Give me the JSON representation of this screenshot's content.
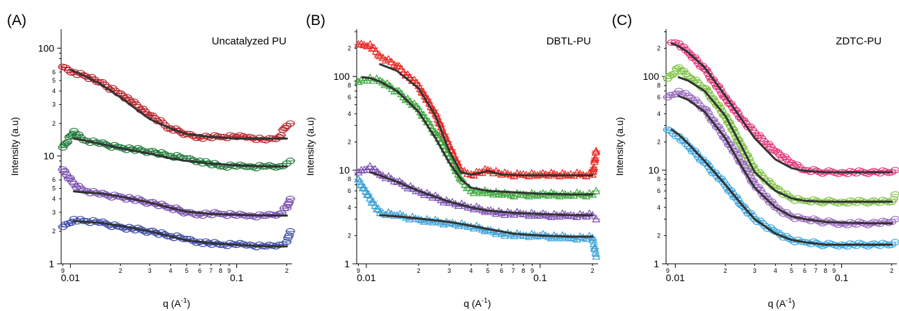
{
  "chart_data": [
    {
      "type": "scatter",
      "panel_label": "(A)",
      "title": "Uncatalyzed PU",
      "xlabel_base": "q (A",
      "xlabel_exp": "-1",
      "xlabel_close": ")",
      "ylabel": "Intensity (a.u)",
      "xscale": "log",
      "yscale": "log",
      "xlim": [
        0.0088,
        0.215
      ],
      "ylim": [
        1,
        150
      ],
      "marker": "ellipse",
      "y_major_ticks": [
        {
          "v": 1,
          "label": "1"
        },
        {
          "v": 10,
          "label": "10"
        },
        {
          "v": 100,
          "label": "100"
        }
      ],
      "y_minor_labels": [
        "2",
        "3",
        "4",
        "5",
        "6",
        "2",
        "3",
        "4",
        "5",
        "6",
        "2",
        "3",
        "4",
        "5",
        "6"
      ],
      "series": [
        {
          "color": "#b8232a",
          "x": [
            0.009,
            0.0105,
            0.012,
            0.015,
            0.02,
            0.03,
            0.04,
            0.05,
            0.06,
            0.08,
            0.1,
            0.12,
            0.15,
            0.18,
            0.2,
            0.21
          ],
          "y": [
            67,
            60,
            56,
            48,
            38,
            24,
            18,
            16,
            15,
            15,
            15,
            15,
            14,
            15,
            19,
            20
          ]
        },
        {
          "color": "#1f7a3a",
          "x": [
            0.009,
            0.0105,
            0.012,
            0.015,
            0.02,
            0.03,
            0.04,
            0.05,
            0.06,
            0.08,
            0.1,
            0.12,
            0.15,
            0.18,
            0.2,
            0.21
          ],
          "y": [
            12,
            17,
            14,
            13,
            12,
            11,
            10,
            9.5,
            9,
            8,
            8,
            8,
            8,
            8,
            8.5,
            9
          ]
        },
        {
          "color": "#7a4fb0",
          "x": [
            0.009,
            0.0105,
            0.012,
            0.015,
            0.02,
            0.03,
            0.04,
            0.05,
            0.06,
            0.08,
            0.1,
            0.12,
            0.15,
            0.18,
            0.2,
            0.21
          ],
          "y": [
            7.5,
            5.5,
            4.8,
            4.4,
            4.2,
            3.7,
            3.3,
            3,
            2.9,
            2.9,
            2.8,
            2.8,
            2.8,
            2.9,
            3.3,
            4
          ]
        },
        {
          "color": "#3a4aa8",
          "x": [
            0.009,
            0.0105,
            0.012,
            0.015,
            0.02,
            0.03,
            0.04,
            0.05,
            0.06,
            0.08,
            0.1,
            0.12,
            0.15,
            0.18,
            0.2,
            0.21
          ],
          "y": [
            2.2,
            2.6,
            2.5,
            2.4,
            2.2,
            2,
            1.8,
            1.7,
            1.6,
            1.5,
            1.5,
            1.5,
            1.45,
            1.5,
            1.6,
            2
          ]
        }
      ],
      "fits": [
        {
          "x": [
            0.01,
            0.012,
            0.015,
            0.02,
            0.025,
            0.03,
            0.04,
            0.05,
            0.07,
            0.1,
            0.15,
            0.2
          ],
          "y": [
            63,
            56,
            47,
            35,
            27,
            22,
            18,
            16,
            15,
            14.5,
            14.5,
            14.5
          ]
        },
        {
          "x": [
            0.0105,
            0.012,
            0.015,
            0.02,
            0.03,
            0.04,
            0.05,
            0.07,
            0.1,
            0.15,
            0.2
          ],
          "y": [
            14.5,
            14,
            13,
            11.8,
            10.5,
            9.5,
            9,
            8.5,
            8.2,
            8,
            8
          ]
        },
        {
          "x": [
            0.0105,
            0.012,
            0.015,
            0.02,
            0.03,
            0.04,
            0.05,
            0.07,
            0.1,
            0.15,
            0.2
          ],
          "y": [
            4.7,
            4.6,
            4.5,
            4.2,
            3.7,
            3.3,
            3.05,
            2.9,
            2.85,
            2.8,
            2.8
          ]
        },
        {
          "x": [
            0.0105,
            0.012,
            0.015,
            0.02,
            0.03,
            0.04,
            0.05,
            0.07,
            0.1,
            0.15,
            0.2
          ],
          "y": [
            2.5,
            2.45,
            2.4,
            2.25,
            2,
            1.8,
            1.65,
            1.55,
            1.5,
            1.45,
            1.45
          ]
        }
      ]
    },
    {
      "type": "scatter",
      "panel_label": "(B)",
      "title": "DBTL-PU",
      "xlabel_base": "q (A",
      "xlabel_exp": "-1",
      "xlabel_close": ")",
      "ylabel": "Intensity (a.u)",
      "xscale": "log",
      "yscale": "log",
      "xlim": [
        0.0088,
        0.215
      ],
      "ylim": [
        1,
        320
      ],
      "marker": "triangle",
      "y_major_ticks": [
        {
          "v": 1,
          "label": "1"
        },
        {
          "v": 10,
          "label": "10"
        },
        {
          "v": 100,
          "label": "100"
        }
      ],
      "y_minor_labels": [
        "2",
        "4",
        "6",
        "8",
        "2",
        "4",
        "6",
        "8",
        "2"
      ],
      "series": [
        {
          "color": "#e8231f",
          "x": [
            0.009,
            0.0105,
            0.012,
            0.015,
            0.02,
            0.025,
            0.03,
            0.035,
            0.04,
            0.05,
            0.06,
            0.08,
            0.1,
            0.15,
            0.2,
            0.21
          ],
          "y": [
            220,
            220,
            165,
            130,
            80,
            40,
            18,
            10,
            9,
            10,
            9,
            9,
            9,
            9,
            9,
            16
          ]
        },
        {
          "color": "#3aa63a",
          "x": [
            0.009,
            0.0105,
            0.012,
            0.015,
            0.02,
            0.025,
            0.03,
            0.035,
            0.04,
            0.05,
            0.06,
            0.08,
            0.1,
            0.15,
            0.2,
            0.21
          ],
          "y": [
            88,
            97,
            90,
            70,
            45,
            25,
            14,
            8,
            6,
            5.8,
            5.5,
            5.5,
            5.5,
            5.5,
            5.5,
            6
          ]
        },
        {
          "color": "#7a4fb0",
          "x": [
            0.009,
            0.0105,
            0.012,
            0.015,
            0.02,
            0.03,
            0.04,
            0.05,
            0.06,
            0.08,
            0.1,
            0.15,
            0.2,
            0.21
          ],
          "y": [
            9.5,
            11,
            9,
            7.5,
            6,
            4.5,
            4,
            3.7,
            3.5,
            3.4,
            3.3,
            3.3,
            3.3,
            3
          ]
        },
        {
          "color": "#3aa0d8",
          "x": [
            0.009,
            0.0105,
            0.012,
            0.015,
            0.02,
            0.03,
            0.04,
            0.05,
            0.06,
            0.08,
            0.1,
            0.15,
            0.2,
            0.21
          ],
          "y": [
            8,
            5,
            3.5,
            3.3,
            3,
            2.7,
            2.5,
            2.3,
            2.1,
            2,
            2,
            1.9,
            1.9,
            1.2
          ]
        }
      ],
      "fits": [
        {
          "x": [
            0.012,
            0.015,
            0.02,
            0.025,
            0.03,
            0.035,
            0.04,
            0.045,
            0.05,
            0.06,
            0.08,
            0.1,
            0.15,
            0.2
          ],
          "y": [
            135,
            115,
            75,
            38,
            16,
            9.5,
            9,
            9.3,
            9.8,
            9,
            8.8,
            8.8,
            8.8,
            8.8
          ]
        },
        {
          "x": [
            0.0095,
            0.0105,
            0.012,
            0.015,
            0.02,
            0.025,
            0.03,
            0.035,
            0.04,
            0.05,
            0.07,
            0.1,
            0.15,
            0.2
          ],
          "y": [
            98,
            96,
            88,
            70,
            42,
            22,
            12,
            8,
            6.5,
            6,
            5.8,
            5.6,
            5.5,
            5.5
          ]
        },
        {
          "x": [
            0.0105,
            0.012,
            0.015,
            0.02,
            0.03,
            0.04,
            0.05,
            0.07,
            0.1,
            0.15,
            0.2
          ],
          "y": [
            9.5,
            8.8,
            7.5,
            6,
            4.6,
            4,
            3.7,
            3.5,
            3.4,
            3.3,
            3.3
          ]
        },
        {
          "x": [
            0.012,
            0.015,
            0.02,
            0.03,
            0.04,
            0.05,
            0.07,
            0.1,
            0.15,
            0.2
          ],
          "y": [
            3.3,
            3.2,
            3.05,
            2.8,
            2.55,
            2.35,
            2.1,
            2,
            1.95,
            1.95
          ]
        }
      ]
    },
    {
      "type": "scatter",
      "panel_label": "(C)",
      "title": "ZDTC-PU",
      "xlabel_base": "q (A",
      "xlabel_exp": "-1",
      "xlabel_close": ")",
      "ylabel": "Intensity (a.u)",
      "xscale": "log",
      "yscale": "log",
      "xlim": [
        0.0088,
        0.215
      ],
      "ylim": [
        1,
        320
      ],
      "marker": "ellipse",
      "y_major_ticks": [
        {
          "v": 1,
          "label": "1"
        },
        {
          "v": 10,
          "label": "10"
        },
        {
          "v": 100,
          "label": "100"
        }
      ],
      "y_minor_labels": [
        "2",
        "4",
        "6",
        "8",
        "2",
        "4",
        "6",
        "8",
        "2"
      ],
      "series": [
        {
          "color": "#e8357c",
          "x": [
            0.0095,
            0.0105,
            0.012,
            0.015,
            0.02,
            0.025,
            0.03,
            0.04,
            0.05,
            0.06,
            0.08,
            0.1,
            0.15,
            0.2,
            0.21
          ],
          "y": [
            230,
            225,
            180,
            120,
            60,
            35,
            25,
            16,
            12,
            10,
            9.5,
            9.5,
            9.5,
            9.5,
            10
          ]
        },
        {
          "color": "#7dc242",
          "x": [
            0.009,
            0.0105,
            0.012,
            0.015,
            0.02,
            0.025,
            0.03,
            0.04,
            0.05,
            0.06,
            0.08,
            0.1,
            0.15,
            0.2,
            0.21
          ],
          "y": [
            95,
            125,
            100,
            75,
            38,
            18,
            10,
            6.5,
            5,
            4.7,
            4.6,
            4.6,
            4.6,
            4.6,
            5.5
          ]
        },
        {
          "color": "#9b6bbf",
          "x": [
            0.009,
            0.0105,
            0.012,
            0.015,
            0.02,
            0.025,
            0.03,
            0.04,
            0.05,
            0.06,
            0.08,
            0.1,
            0.15,
            0.2,
            0.21
          ],
          "y": [
            60,
            70,
            62,
            45,
            22,
            12,
            7,
            4,
            3.2,
            3,
            2.8,
            2.7,
            2.7,
            2.8,
            3
          ]
        },
        {
          "color": "#3aa6e0",
          "x": [
            0.009,
            0.0105,
            0.012,
            0.015,
            0.02,
            0.025,
            0.03,
            0.04,
            0.05,
            0.06,
            0.08,
            0.1,
            0.15,
            0.2,
            0.21
          ],
          "y": [
            27,
            23,
            18,
            12,
            7,
            4.2,
            3,
            2.2,
            1.8,
            1.7,
            1.6,
            1.6,
            1.6,
            1.6,
            1.7
          ]
        }
      ],
      "fits": [
        {
          "x": [
            0.0095,
            0.0105,
            0.012,
            0.015,
            0.02,
            0.025,
            0.03,
            0.04,
            0.05,
            0.06,
            0.08,
            0.1,
            0.15,
            0.2
          ],
          "y": [
            225,
            210,
            180,
            125,
            62,
            35,
            22,
            13,
            10.5,
            9.8,
            9.5,
            9.5,
            9.5,
            9.5
          ]
        },
        {
          "x": [
            0.0105,
            0.012,
            0.015,
            0.02,
            0.025,
            0.03,
            0.04,
            0.05,
            0.06,
            0.08,
            0.1,
            0.15,
            0.2
          ],
          "y": [
            98,
            90,
            70,
            38,
            18,
            9.5,
            6,
            5,
            4.7,
            4.6,
            4.6,
            4.6,
            4.6
          ]
        },
        {
          "x": [
            0.0105,
            0.012,
            0.015,
            0.02,
            0.025,
            0.03,
            0.04,
            0.05,
            0.06,
            0.08,
            0.1,
            0.15,
            0.2
          ],
          "y": [
            62,
            56,
            42,
            22,
            11,
            6.5,
            4,
            3.2,
            3,
            2.8,
            2.75,
            2.7,
            2.7
          ]
        },
        {
          "x": [
            0.0095,
            0.0105,
            0.012,
            0.015,
            0.02,
            0.025,
            0.03,
            0.04,
            0.05,
            0.06,
            0.08,
            0.1,
            0.15,
            0.2
          ],
          "y": [
            27,
            24,
            19,
            12.5,
            7,
            4.3,
            3,
            2.1,
            1.8,
            1.7,
            1.6,
            1.6,
            1.6,
            1.6
          ]
        }
      ]
    }
  ],
  "x_major_ticks": [
    {
      "v": 0.01,
      "label": "0.01"
    },
    {
      "v": 0.1,
      "label": "0.1"
    }
  ],
  "x_minor_ticks": [
    {
      "v": 0.009,
      "label": "9"
    },
    {
      "v": 0.02,
      "label": "2"
    },
    {
      "v": 0.03,
      "label": "3"
    },
    {
      "v": 0.04,
      "label": "4"
    },
    {
      "v": 0.05,
      "label": "5"
    },
    {
      "v": 0.06,
      "label": "6"
    },
    {
      "v": 0.07,
      "label": "7"
    },
    {
      "v": 0.08,
      "label": "8"
    },
    {
      "v": 0.09,
      "label": "9"
    },
    {
      "v": 0.2,
      "label": "2"
    }
  ]
}
